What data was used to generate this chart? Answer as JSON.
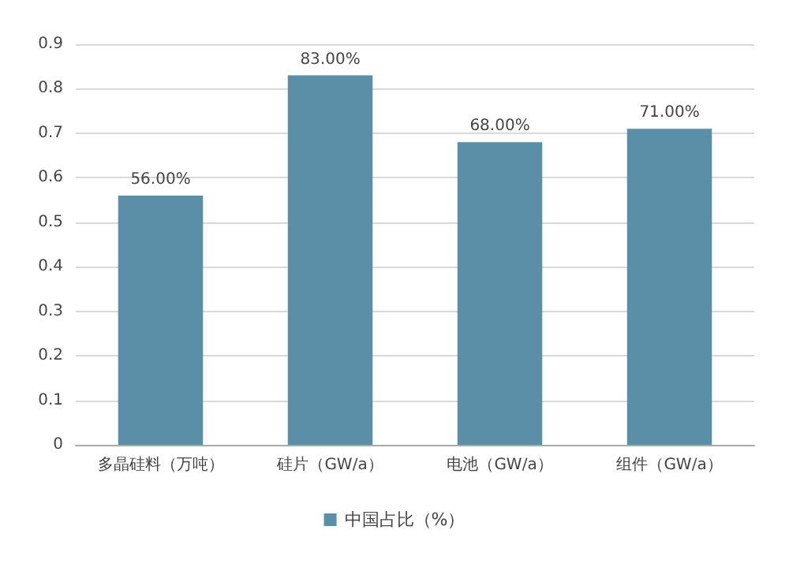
{
  "chart_data": {
    "type": "bar",
    "categories": [
      "多晶硅料（万吨）",
      "硅片（GW/a）",
      "电池（GW/a）",
      "组件（GW/a）"
    ],
    "series": [
      {
        "name": "中国占比（%）",
        "color": "#5b8fa8",
        "values": [
          0.56,
          0.83,
          0.68,
          0.71
        ],
        "value_labels": [
          "56.00%",
          "83.00%",
          "68.00%",
          "71.00%"
        ]
      }
    ],
    "ylim": [
      0,
      0.9
    ],
    "yticks": [
      0,
      0.1,
      0.2,
      0.3,
      0.4,
      0.5,
      0.6,
      0.7,
      0.8,
      0.9
    ],
    "grid": "y",
    "legend": "bottom"
  }
}
